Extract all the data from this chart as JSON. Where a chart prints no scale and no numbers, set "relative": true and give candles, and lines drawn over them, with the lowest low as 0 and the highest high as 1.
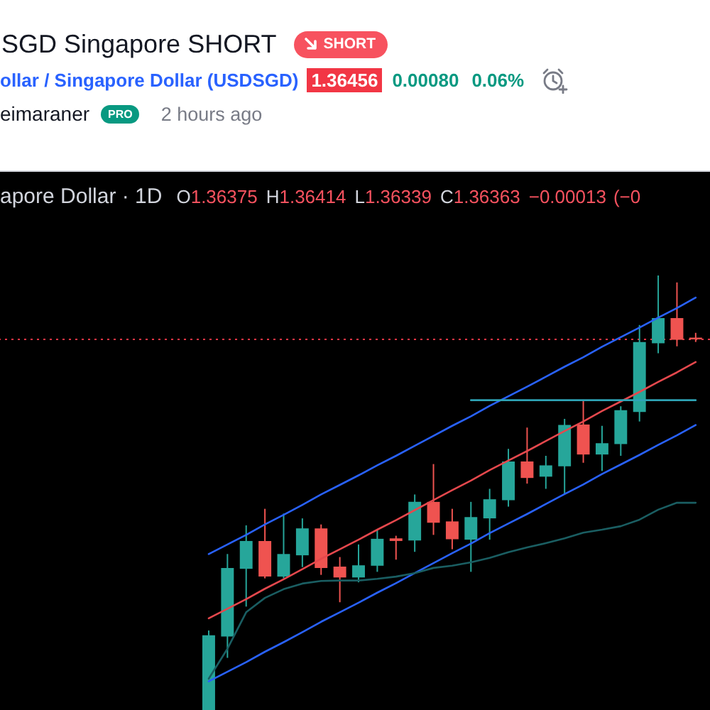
{
  "chart_data": {
    "type": "candlestick",
    "title": "SGD Singapore SHORT",
    "subtitle": "ollar / Singapore Dollar (USDSGD)",
    "annotations": [
      "SHORT",
      "1.36456",
      "0.00080",
      "0.06%",
      "eimaraner",
      "PRO",
      "2 hours ago",
      "apore Dollar · 1D",
      "O",
      "1.36375",
      "H",
      "1.36414",
      "L",
      "1.36339",
      "C",
      "1.36363",
      "−0.00013",
      "(−0"
    ],
    "relative": true,
    "categories": [
      null,
      null,
      null,
      null,
      null,
      null,
      null,
      null,
      null,
      null,
      null,
      null,
      null,
      null,
      null,
      null,
      null,
      null,
      null,
      null,
      null,
      null,
      null,
      null,
      null,
      null,
      null
    ],
    "ohlc": [
      [
        0,
        0.183,
        0,
        0.172
      ],
      [
        0.169,
        0.359,
        0.12,
        0.327
      ],
      [
        0.325,
        0.425,
        0.238,
        0.389
      ],
      [
        0.389,
        0.463,
        0.303,
        0.307
      ],
      [
        0.307,
        0.452,
        0.303,
        0.359
      ],
      [
        0.356,
        0.441,
        0.329,
        0.418
      ],
      [
        0.418,
        0.427,
        0.311,
        0.327
      ],
      [
        0.33,
        0.352,
        0.248,
        0.305
      ],
      [
        0.305,
        0.381,
        0.294,
        0.333
      ],
      [
        0.332,
        0.414,
        0.318,
        0.394
      ],
      [
        0.395,
        0.401,
        0.346,
        0.389
      ],
      [
        0.39,
        0.496,
        0.364,
        0.479
      ],
      [
        0.479,
        0.566,
        0.403,
        0.431
      ],
      [
        0.434,
        0.463,
        0.37,
        0.393
      ],
      [
        0.392,
        0.479,
        0.318,
        0.444
      ],
      [
        0.441,
        0.509,
        0.392,
        0.485
      ],
      [
        0.483,
        0.601,
        0.468,
        0.572
      ],
      [
        0.572,
        0.65,
        0.521,
        0.534
      ],
      [
        0.537,
        0.585,
        0.509,
        0.563
      ],
      [
        0.561,
        0.67,
        0.498,
        0.656
      ],
      [
        0.657,
        0.711,
        0.569,
        0.588
      ],
      [
        0.588,
        0.654,
        0.55,
        0.614
      ],
      [
        0.612,
        0.699,
        0.585,
        0.69
      ],
      [
        0.686,
        0.886,
        0.664,
        0.847
      ],
      [
        0.844,
        1,
        0.821,
        0.902
      ],
      [
        0.902,
        0.984,
        0.837,
        0.852
      ],
      [
        0.857,
        0.868,
        0.847,
        0.853
      ]
    ],
    "colors": [
      "#26a69a",
      "#26a69a",
      "#26a69a",
      "#ef5350",
      "#26a69a",
      "#26a69a",
      "#ef5350",
      "#ef5350",
      "#26a69a",
      "#26a69a",
      "#ef5350",
      "#26a69a",
      "#ef5350",
      "#ef5350",
      "#26a69a",
      "#26a69a",
      "#26a69a",
      "#ef5350",
      "#26a69a",
      "#26a69a",
      "#ef5350",
      "#26a69a",
      "#26a69a",
      "#26a69a",
      "#26a69a",
      "#ef5350",
      "#ef5350"
    ],
    "series": [
      {
        "type": "line",
        "color": "#2962ff",
        "values": [
          0.359,
          0.381,
          0.403,
          0.427,
          0.449,
          0.472,
          0.496,
          0.518,
          0.54,
          0.563,
          0.585,
          0.608,
          0.631,
          0.654,
          0.676,
          0.7,
          0.722,
          0.744,
          0.767,
          0.79,
          0.812,
          0.836,
          0.858,
          0.88,
          0.903,
          0.925,
          0.949
        ]
      },
      {
        "type": "line",
        "color": "#e5484d",
        "values": [
          0.211,
          0.233,
          0.255,
          0.279,
          0.301,
          0.324,
          0.348,
          0.37,
          0.392,
          0.415,
          0.437,
          0.46,
          0.483,
          0.506,
          0.528,
          0.552,
          0.574,
          0.596,
          0.619,
          0.642,
          0.664,
          0.688,
          0.71,
          0.732,
          0.755,
          0.777,
          0.801
        ]
      },
      {
        "type": "line",
        "color": "#2962ff",
        "values": [
          0.066,
          0.088,
          0.11,
          0.134,
          0.156,
          0.179,
          0.203,
          0.225,
          0.247,
          0.27,
          0.292,
          0.315,
          0.338,
          0.361,
          0.383,
          0.407,
          0.429,
          0.451,
          0.474,
          0.497,
          0.519,
          0.543,
          0.565,
          0.587,
          0.61,
          0.632,
          0.656
        ]
      },
      {
        "type": "line",
        "color": "#1a5e62",
        "values": [
          0.072,
          0.141,
          0.225,
          0.258,
          0.278,
          0.291,
          0.297,
          0.298,
          0.298,
          0.302,
          0.307,
          0.315,
          0.327,
          0.332,
          0.34,
          0.35,
          0.363,
          0.374,
          0.384,
          0.395,
          0.408,
          0.415,
          0.423,
          0.438,
          0.461,
          0.477,
          0.477
        ]
      },
      {
        "type": "line",
        "color": "#2ea3b5",
        "values": [
          null,
          null,
          null,
          null,
          null,
          null,
          null,
          null,
          null,
          null,
          null,
          null,
          null,
          null,
          0.713,
          0.713,
          0.713,
          0.713,
          0.713,
          0.713,
          0.713,
          0.713,
          0.713,
          0.713,
          0.713,
          0.713,
          0.713
        ]
      }
    ],
    "ref_lines": [
      {
        "axis": "y",
        "value": 0.853,
        "color": "#f23645",
        "line_style": "dotted"
      }
    ]
  }
}
